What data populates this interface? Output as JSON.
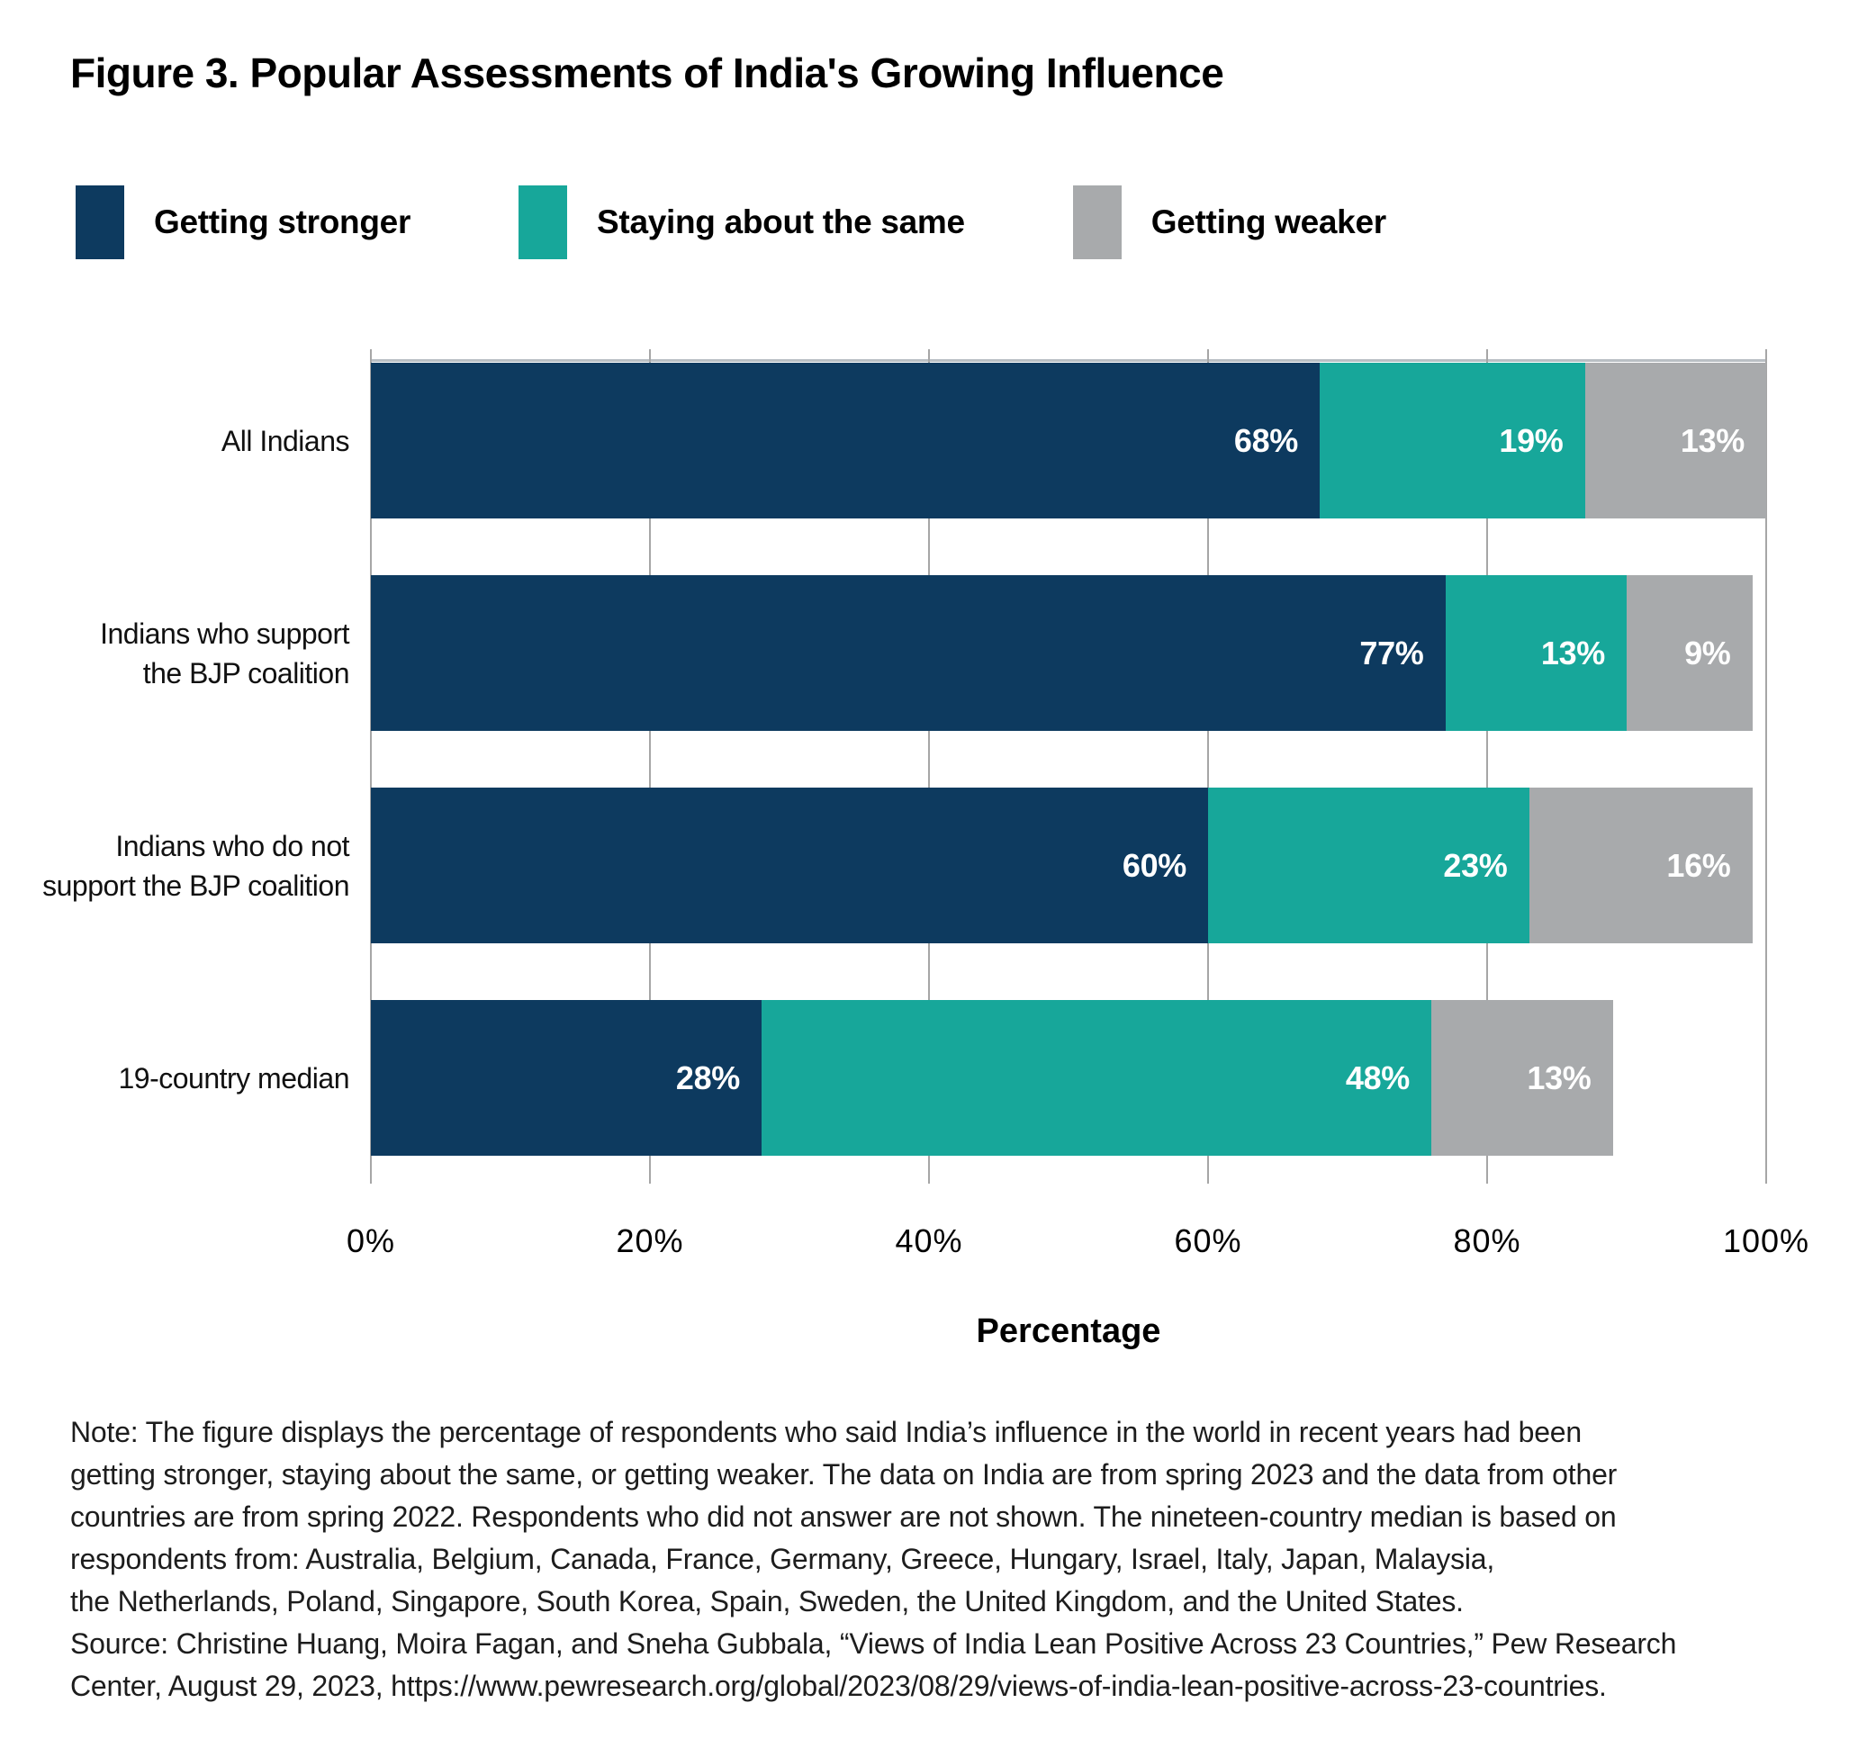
{
  "chart_data": {
    "type": "bar",
    "orientation": "horizontal",
    "stacked": true,
    "title": "Figure 3. Popular Assessments of India's Growing Influence",
    "categories": [
      "All Indians",
      "Indians who support the BJP coalition",
      "Indians who do not support the BJP coalition",
      "19-country median"
    ],
    "category_label_lines": [
      [
        "All Indians"
      ],
      [
        "Indians who support",
        "the BJP coalition"
      ],
      [
        "Indians who do not",
        "support the BJP coalition"
      ],
      [
        "19-country median"
      ]
    ],
    "series": [
      {
        "name": "Getting stronger",
        "color": "#0d3a5f",
        "values": [
          68,
          77,
          60,
          28
        ]
      },
      {
        "name": "Staying about the same",
        "color": "#17a79a",
        "values": [
          19,
          13,
          23,
          48
        ]
      },
      {
        "name": "Getting weaker",
        "color": "#a8aaac",
        "values": [
          13,
          9,
          16,
          13
        ]
      }
    ],
    "value_suffix": "%",
    "xlabel": "Percentage",
    "x_ticks": [
      "0%",
      "20%",
      "40%",
      "60%",
      "80%",
      "100%"
    ],
    "x_tick_values": [
      0,
      20,
      40,
      60,
      80,
      100
    ],
    "xlim": [
      0,
      100
    ],
    "grid": "vertical",
    "legend_position": "top",
    "colors": {
      "grid": "#a6a6a6",
      "plot_top_border": "#b9bfc4",
      "value_label": "#ffffff",
      "background": "#ffffff"
    }
  },
  "note": {
    "lines": [
      "Note: The figure displays the percentage of respondents who said India’s influence in the world in recent years had been",
      "getting stronger, staying about the same, or getting weaker. The data on India are from spring 2023 and the data from other",
      "countries are from spring 2022. Respondents who did not answer are not shown. The nineteen-country median is based on",
      "respondents from: Australia, Belgium, Canada, France, Germany, Greece, Hungary, Israel, Italy, Japan, Malaysia,",
      "the Netherlands, Poland, Singapore, South Korea, Spain, Sweden, the United Kingdom, and the United States.",
      "Source: Christine Huang, Moira Fagan, and Sneha Gubbala, “Views of India Lean Positive Across 23 Countries,” Pew Research",
      "Center, August 29, 2023, https://www.pewresearch.org/global/2023/08/29/views-of-india-lean-positive-across-23-countries."
    ]
  }
}
